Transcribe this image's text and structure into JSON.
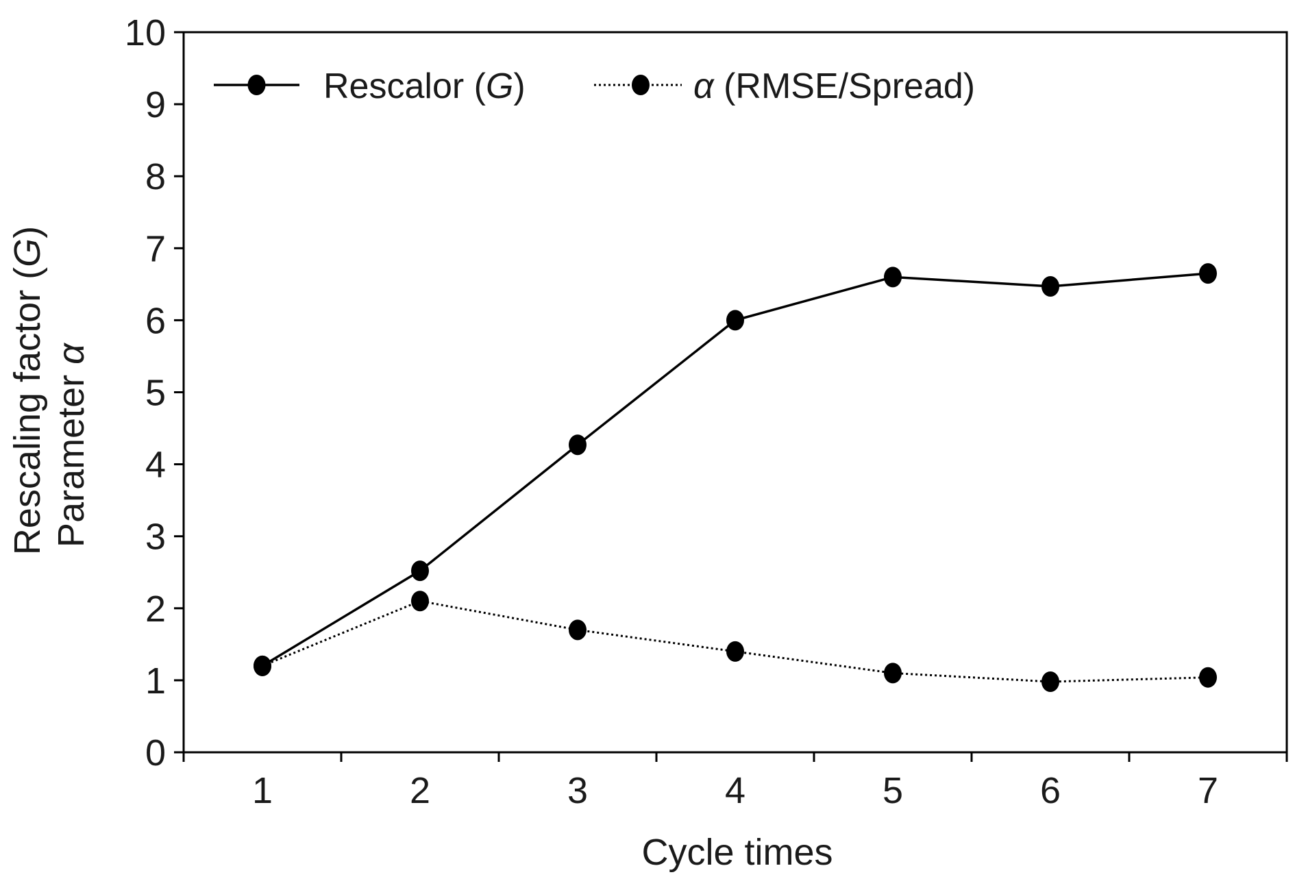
{
  "chart_data": {
    "type": "line",
    "x": [
      1,
      2,
      3,
      4,
      5,
      6,
      7
    ],
    "series": [
      {
        "name_prefix": "Rescalor (",
        "name_italic": "G",
        "name_suffix": ")",
        "style": "solid",
        "values": [
          1.2,
          2.52,
          4.27,
          6.0,
          6.6,
          6.47,
          6.65
        ]
      },
      {
        "name_prefix": "",
        "name_italic": "α",
        "name_suffix": " (RMSE/Spread)",
        "style": "dotted",
        "values": [
          1.2,
          2.1,
          1.7,
          1.4,
          1.1,
          0.98,
          1.04
        ]
      }
    ],
    "xlabel": "Cycle times",
    "ylabel_line1_prefix": "Rescaling factor (",
    "ylabel_line1_italic": "G",
    "ylabel_line1_suffix": ")",
    "ylabel_line2_prefix": "Parameter ",
    "ylabel_line2_italic": "α",
    "xlim": [
      0.5,
      7.5
    ],
    "ylim": [
      0,
      10
    ],
    "xticks": [
      "1",
      "2",
      "3",
      "4",
      "5",
      "6",
      "7"
    ],
    "yticks": [
      "0",
      "1",
      "2",
      "3",
      "4",
      "5",
      "6",
      "7",
      "8",
      "9",
      "10"
    ],
    "grid": false,
    "legend_position": "top-left",
    "line_color": "#000000"
  }
}
